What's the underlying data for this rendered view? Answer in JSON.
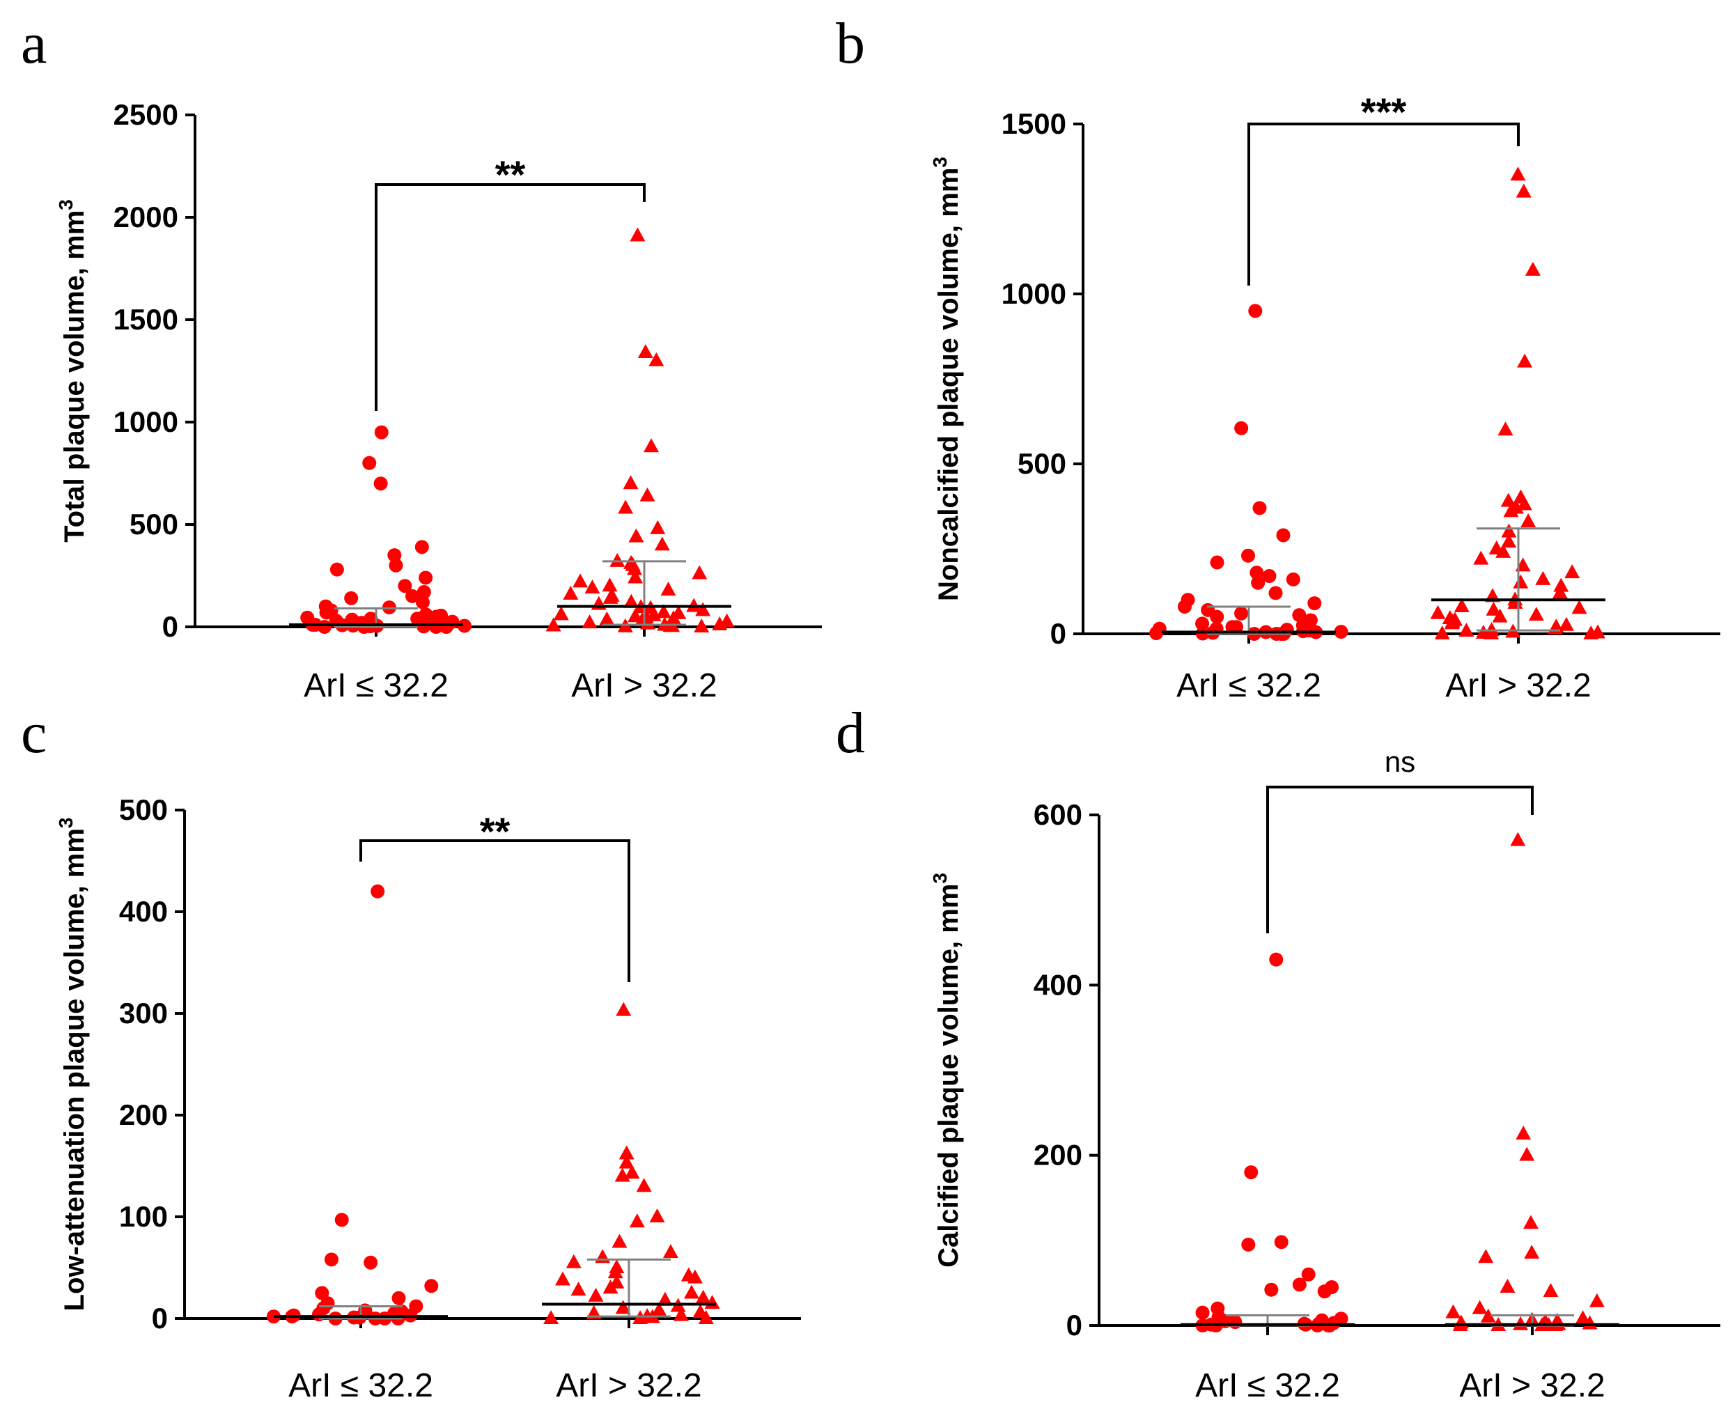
{
  "figure": {
    "marker_color": "#ff0000",
    "axis_color": "#000000",
    "median_color": "#000000",
    "iqr_color": "#808080"
  },
  "chart_data": [
    {
      "panel": "a",
      "type": "scatter",
      "title": "",
      "xlabel": "",
      "ylabel": "Total plaque volume, mm",
      "ylabel_sup": "3",
      "ylim": [
        0,
        2500
      ],
      "yticks": [
        0,
        500,
        1000,
        1500,
        2000,
        2500
      ],
      "categories": [
        "ArI ≤ 32.2",
        "ArI > 32.2"
      ],
      "series": [
        {
          "name": "ArI ≤ 32.2",
          "marker": "circle",
          "values": [
            950,
            800,
            700,
            390,
            350,
            300,
            280,
            240,
            200,
            170,
            150,
            140,
            120,
            100,
            95,
            80,
            70,
            60,
            55,
            50,
            45,
            40,
            40,
            35,
            30,
            30,
            25,
            20,
            20,
            15,
            15,
            10,
            10,
            8,
            6,
            5,
            5,
            3,
            2,
            0,
            0,
            0,
            0
          ],
          "median": 10,
          "q1": 0,
          "q3": 90
        },
        {
          "name": "ArI > 32.2",
          "marker": "triangle",
          "values": [
            1910,
            1340,
            1300,
            880,
            700,
            640,
            580,
            480,
            440,
            400,
            320,
            310,
            300,
            280,
            260,
            240,
            220,
            200,
            190,
            180,
            160,
            150,
            140,
            120,
            110,
            100,
            95,
            90,
            80,
            70,
            65,
            60,
            55,
            50,
            45,
            40,
            35,
            30,
            25,
            20,
            15,
            10,
            8,
            5,
            3,
            2,
            1,
            0
          ],
          "median": 100,
          "q1": 10,
          "q3": 320
        }
      ],
      "significance": "**"
    },
    {
      "panel": "b",
      "type": "scatter",
      "title": "",
      "xlabel": "",
      "ylabel": "Noncalcified plaque volume, mm",
      "ylabel_sup": "3",
      "ylim": [
        0,
        1500
      ],
      "yticks": [
        0,
        500,
        1000,
        1500
      ],
      "categories": [
        "ArI ≤ 32.2",
        "ArI > 32.2"
      ],
      "series": [
        {
          "name": "ArI ≤ 32.2",
          "marker": "circle",
          "values": [
            950,
            605,
            370,
            290,
            230,
            210,
            180,
            170,
            160,
            150,
            120,
            100,
            90,
            80,
            70,
            60,
            55,
            50,
            40,
            30,
            25,
            20,
            20,
            15,
            15,
            12,
            10,
            8,
            6,
            5,
            5,
            3,
            2,
            1,
            0,
            0,
            0,
            0
          ],
          "median": 5,
          "q1": 0,
          "q3": 80
        },
        {
          "name": "ArI > 32.2",
          "marker": "triangle",
          "values": [
            1350,
            1300,
            1070,
            800,
            600,
            400,
            390,
            380,
            370,
            360,
            330,
            300,
            270,
            250,
            240,
            220,
            200,
            180,
            160,
            150,
            140,
            120,
            110,
            100,
            90,
            80,
            75,
            70,
            60,
            55,
            50,
            45,
            40,
            35,
            30,
            25,
            20,
            15,
            10,
            8,
            5,
            3,
            2,
            0,
            0,
            0
          ],
          "median": 100,
          "q1": 10,
          "q3": 310
        }
      ],
      "significance": "***"
    },
    {
      "panel": "c",
      "type": "scatter",
      "title": "",
      "xlabel": "",
      "ylabel": "Low-attenuation plaque volume, mm",
      "ylabel_sup": "3",
      "ylim": [
        0,
        500
      ],
      "yticks": [
        0,
        100,
        200,
        300,
        400,
        500
      ],
      "categories": [
        "ArI ≤ 32.2",
        "ArI > 32.2"
      ],
      "series": [
        {
          "name": "ArI ≤ 32.2",
          "marker": "circle",
          "values": [
            420,
            97,
            58,
            55,
            32,
            25,
            20,
            15,
            12,
            10,
            8,
            7,
            6,
            5,
            5,
            4,
            3,
            3,
            2,
            2,
            1,
            1,
            0,
            0,
            0,
            0
          ],
          "median": 2,
          "q1": 0,
          "q3": 12
        },
        {
          "name": "ArI > 32.2",
          "marker": "triangle",
          "values": [
            303,
            162,
            153,
            143,
            140,
            130,
            100,
            95,
            75,
            65,
            60,
            55,
            50,
            45,
            42,
            40,
            38,
            35,
            30,
            28,
            25,
            22,
            20,
            18,
            15,
            12,
            10,
            8,
            6,
            5,
            3,
            2,
            1,
            0,
            0,
            0
          ],
          "median": 14,
          "q1": 2,
          "q3": 58
        }
      ],
      "significance": "**"
    },
    {
      "panel": "d",
      "type": "scatter",
      "title": "",
      "xlabel": "",
      "ylabel": "Calcified plaque volume, mm",
      "ylabel_sup": "3",
      "ylim": [
        0,
        600
      ],
      "yticks": [
        0,
        200,
        400,
        600
      ],
      "categories": [
        "ArI ≤ 32.2",
        "ArI > 32.2"
      ],
      "series": [
        {
          "name": "ArI ≤ 32.2",
          "marker": "circle",
          "values": [
            430,
            180,
            98,
            95,
            60,
            48,
            45,
            42,
            40,
            20,
            15,
            10,
            8,
            6,
            5,
            4,
            3,
            2,
            2,
            1,
            1,
            0,
            0,
            0,
            0,
            0
          ],
          "median": 1,
          "q1": 0,
          "q3": 12
        },
        {
          "name": "ArI > 32.2",
          "marker": "triangle",
          "values": [
            570,
            225,
            200,
            120,
            85,
            80,
            45,
            40,
            28,
            20,
            15,
            10,
            8,
            6,
            5,
            4,
            3,
            2,
            1,
            1,
            0,
            0,
            0,
            0,
            0
          ],
          "median": 1,
          "q1": 0,
          "q3": 12
        }
      ],
      "significance": "ns"
    }
  ]
}
